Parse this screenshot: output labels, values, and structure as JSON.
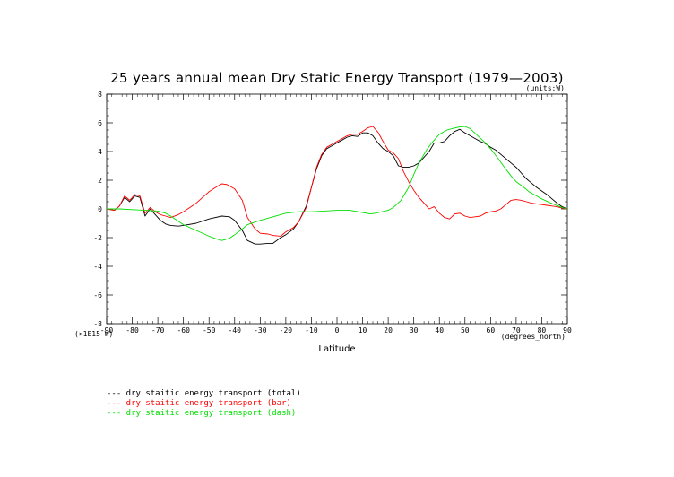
{
  "chart_data": {
    "type": "line",
    "title": "25 years annual mean Dry Static Energy Transport (1979—2003)",
    "units_label": "(units:W)",
    "xlabel": "Latitude",
    "x_units_label": "(degrees_north)",
    "y_scale_label": "(×1E15 W)",
    "xlim": [
      -90,
      90
    ],
    "ylim": [
      -8,
      8
    ],
    "x_ticks": [
      -90,
      -80,
      -70,
      -60,
      -50,
      -40,
      -30,
      -20,
      -10,
      0,
      10,
      20,
      30,
      40,
      50,
      60,
      70,
      80,
      90
    ],
    "y_ticks": [
      -8,
      -6,
      -4,
      -2,
      0,
      2,
      4,
      6,
      8
    ],
    "series": [
      {
        "name": "dry staitic energy transport (total)",
        "legend_label": "--- dry staitic energy transport (total)",
        "color": "#000000",
        "x": [
          -90,
          -87,
          -85,
          -83,
          -81,
          -79,
          -77,
          -75,
          -73,
          -71,
          -69,
          -67,
          -65,
          -62,
          -60,
          -55,
          -50,
          -45,
          -42,
          -40,
          -37,
          -35,
          -32,
          -30,
          -27,
          -25,
          -22,
          -20,
          -17,
          -15,
          -12,
          -10,
          -8,
          -6,
          -4,
          -2,
          0,
          2,
          4,
          6,
          8,
          10,
          12,
          14,
          16,
          18,
          20,
          22,
          24,
          26,
          28,
          30,
          32,
          34,
          36,
          38,
          40,
          42,
          44,
          46,
          48,
          50,
          52,
          54,
          56,
          58,
          60,
          62,
          64,
          66,
          68,
          70,
          72,
          74,
          76,
          78,
          80,
          82,
          84,
          86,
          88,
          90
        ],
        "y": [
          0.0,
          -0.1,
          0.2,
          0.8,
          0.5,
          0.9,
          0.8,
          -0.5,
          0.0,
          -0.4,
          -0.8,
          -1.05,
          -1.15,
          -1.2,
          -1.15,
          -1.0,
          -0.7,
          -0.5,
          -0.55,
          -0.8,
          -1.5,
          -2.2,
          -2.45,
          -2.45,
          -2.4,
          -2.4,
          -2.0,
          -1.8,
          -1.4,
          -0.9,
          0.2,
          1.5,
          2.8,
          3.7,
          4.2,
          4.4,
          4.6,
          4.8,
          5.0,
          5.1,
          5.05,
          5.3,
          5.3,
          5.1,
          4.6,
          4.2,
          4.0,
          3.7,
          3.0,
          2.9,
          2.9,
          3.0,
          3.2,
          3.6,
          4.0,
          4.6,
          4.6,
          4.7,
          5.1,
          5.4,
          5.55,
          5.3,
          5.1,
          4.9,
          4.7,
          4.55,
          4.3,
          4.1,
          3.8,
          3.5,
          3.2,
          2.9,
          2.5,
          2.1,
          1.8,
          1.5,
          1.25,
          1.0,
          0.7,
          0.4,
          0.15,
          0.0
        ]
      },
      {
        "name": "dry staitic energy transport (bar)",
        "legend_label": "--- dry staitic energy transport (bar)",
        "color": "#ff0000",
        "x": [
          -90,
          -87,
          -85,
          -83,
          -81,
          -79,
          -77,
          -75,
          -73,
          -71,
          -69,
          -67,
          -65,
          -62,
          -60,
          -55,
          -50,
          -47,
          -45,
          -43,
          -40,
          -37,
          -35,
          -32,
          -30,
          -27,
          -25,
          -22,
          -20,
          -17,
          -15,
          -12,
          -10,
          -8,
          -6,
          -4,
          -2,
          0,
          2,
          4,
          6,
          8,
          10,
          12,
          14,
          16,
          18,
          20,
          22,
          24,
          26,
          28,
          30,
          32,
          34,
          36,
          38,
          40,
          42,
          44,
          46,
          48,
          50,
          52,
          54,
          56,
          58,
          60,
          62,
          64,
          66,
          68,
          70,
          72,
          74,
          76,
          78,
          80,
          82,
          84,
          86,
          88,
          90
        ],
        "y": [
          0.0,
          -0.1,
          0.2,
          0.9,
          0.6,
          1.0,
          0.9,
          -0.3,
          0.1,
          -0.2,
          -0.4,
          -0.5,
          -0.6,
          -0.4,
          -0.2,
          0.4,
          1.2,
          1.55,
          1.75,
          1.7,
          1.4,
          0.6,
          -0.6,
          -1.4,
          -1.7,
          -1.75,
          -1.85,
          -1.9,
          -1.6,
          -1.3,
          -0.9,
          0.1,
          1.5,
          2.9,
          3.8,
          4.3,
          4.5,
          4.7,
          4.9,
          5.1,
          5.2,
          5.2,
          5.4,
          5.65,
          5.75,
          5.35,
          4.7,
          4.1,
          3.9,
          3.5,
          2.6,
          1.9,
          1.3,
          0.8,
          0.4,
          0.0,
          0.15,
          -0.3,
          -0.6,
          -0.7,
          -0.35,
          -0.3,
          -0.5,
          -0.6,
          -0.55,
          -0.5,
          -0.3,
          -0.2,
          -0.15,
          0.0,
          0.3,
          0.6,
          0.65,
          0.6,
          0.5,
          0.4,
          0.35,
          0.3,
          0.25,
          0.2,
          0.15,
          0.05,
          0.0
        ]
      },
      {
        "name": "dry staitic energy transport (dash)",
        "legend_label": "--- dry staitic energy transport (dash)",
        "color": "#00e000",
        "x": [
          -90,
          -85,
          -80,
          -75,
          -70,
          -67,
          -65,
          -60,
          -55,
          -50,
          -47,
          -45,
          -42,
          -40,
          -37,
          -35,
          -30,
          -25,
          -20,
          -15,
          -10,
          -5,
          0,
          5,
          10,
          13,
          15,
          20,
          22,
          25,
          28,
          30,
          32,
          35,
          37,
          40,
          43,
          45,
          48,
          50,
          52,
          55,
          58,
          60,
          63,
          65,
          68,
          70,
          73,
          75,
          78,
          80,
          83,
          85,
          88,
          90
        ],
        "y": [
          0.0,
          0.0,
          -0.05,
          -0.1,
          -0.15,
          -0.3,
          -0.5,
          -1.1,
          -1.5,
          -1.9,
          -2.1,
          -2.2,
          -2.05,
          -1.8,
          -1.4,
          -1.1,
          -0.8,
          -0.55,
          -0.3,
          -0.2,
          -0.2,
          -0.15,
          -0.1,
          -0.1,
          -0.25,
          -0.35,
          -0.3,
          -0.1,
          0.1,
          0.6,
          1.5,
          2.4,
          3.2,
          4.1,
          4.6,
          5.2,
          5.5,
          5.6,
          5.72,
          5.75,
          5.6,
          5.1,
          4.6,
          4.2,
          3.5,
          3.0,
          2.3,
          1.9,
          1.5,
          1.2,
          0.9,
          0.7,
          0.45,
          0.3,
          0.1,
          0.0
        ]
      }
    ]
  }
}
